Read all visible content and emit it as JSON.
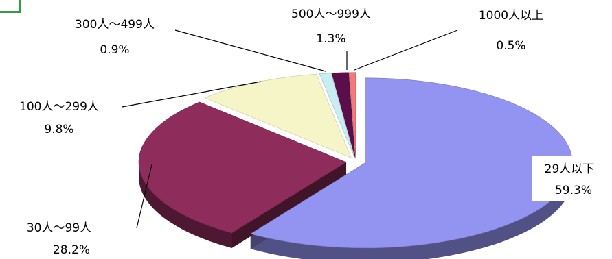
{
  "chart_data": {
    "type": "pie",
    "style": "3d-exploded",
    "title": "",
    "slices": [
      {
        "category": "29人以下",
        "value": 59.3,
        "value_label": "59.3%",
        "color": "#9393f2"
      },
      {
        "category": "30人～99人",
        "value": 28.2,
        "value_label": "28.2%",
        "color": "#8e2c5c"
      },
      {
        "category": "100人～299人",
        "value": 9.8,
        "value_label": "9.8%",
        "color": "#f5f5c8"
      },
      {
        "category": "300人～499人",
        "value": 0.9,
        "value_label": "0.9%",
        "color": "#c8eef2"
      },
      {
        "category": "500人～999人",
        "value": 1.3,
        "value_label": "1.3%",
        "color": "#5a0f4a"
      },
      {
        "category": "1000人以上",
        "value": 0.5,
        "value_label": "0.5%",
        "color": "#f47a7a"
      }
    ],
    "legend": "none",
    "labels": "outside-with-leader-lines"
  }
}
